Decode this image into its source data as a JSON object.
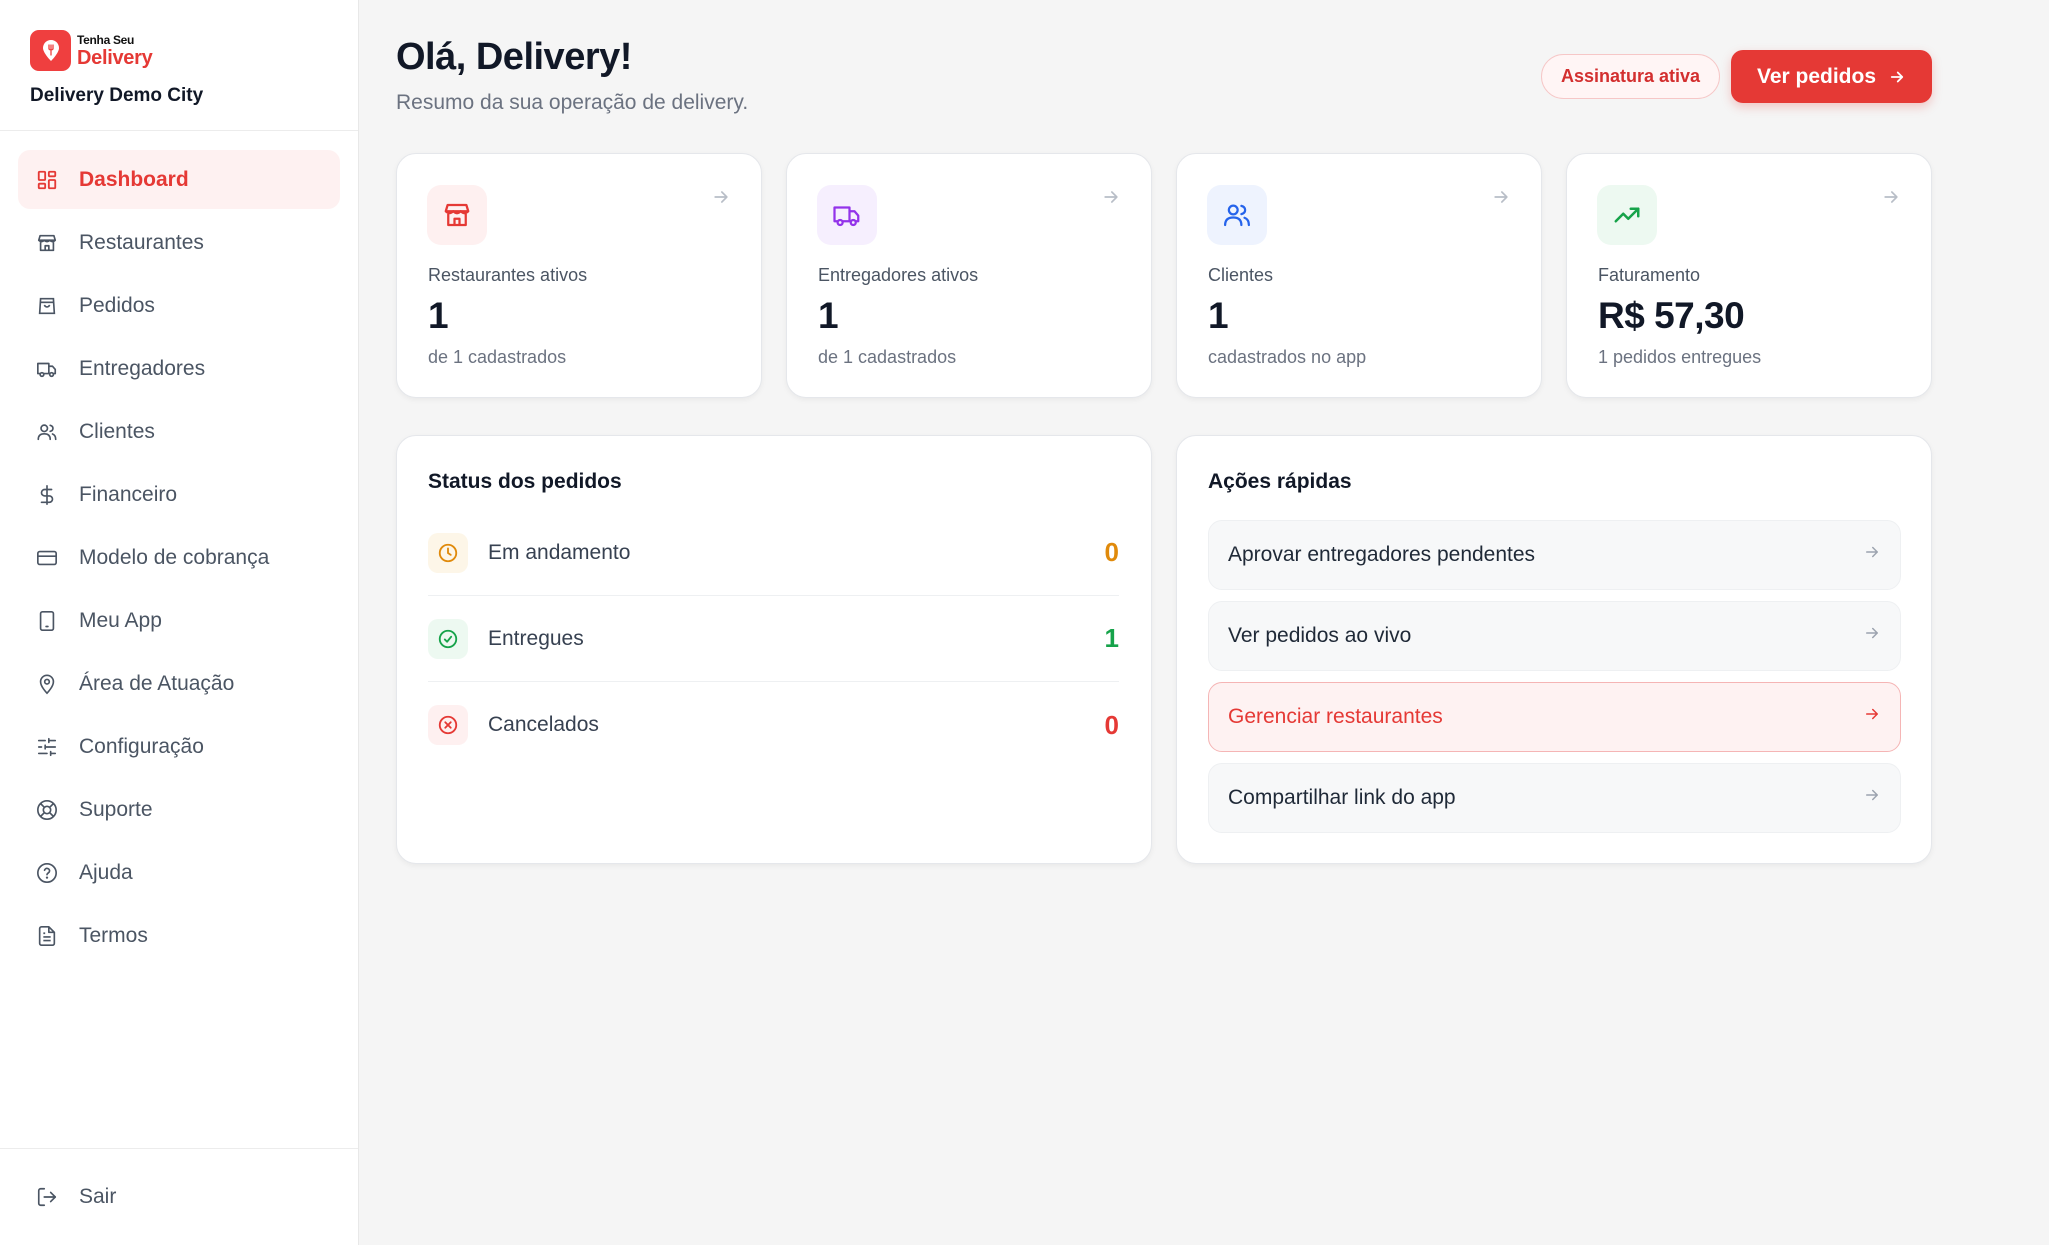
{
  "brand": {
    "line1": "Tenha Seu",
    "line2": "Delivery",
    "city": "Delivery Demo City"
  },
  "nav": {
    "items": [
      {
        "label": "Dashboard",
        "icon": "dashboard-icon",
        "active": true
      },
      {
        "label": "Restaurantes",
        "icon": "store-icon"
      },
      {
        "label": "Pedidos",
        "icon": "bag-icon"
      },
      {
        "label": "Entregadores",
        "icon": "truck-icon"
      },
      {
        "label": "Clientes",
        "icon": "users-icon"
      },
      {
        "label": "Financeiro",
        "icon": "dollar-icon"
      },
      {
        "label": "Modelo de cobrança",
        "icon": "card-icon"
      },
      {
        "label": "Meu App",
        "icon": "phone-icon"
      },
      {
        "label": "Área de Atuação",
        "icon": "map-pin-icon"
      },
      {
        "label": "Configuração",
        "icon": "sliders-icon"
      },
      {
        "label": "Suporte",
        "icon": "lifebuoy-icon"
      },
      {
        "label": "Ajuda",
        "icon": "help-icon"
      },
      {
        "label": "Termos",
        "icon": "document-icon"
      }
    ],
    "logout": "Sair"
  },
  "header": {
    "greeting": "Olá, Delivery!",
    "subtitle": "Resumo da sua operação de delivery.",
    "badge": "Assinatura ativa",
    "button": "Ver pedidos"
  },
  "stats": [
    {
      "label": "Restaurantes ativos",
      "value": "1",
      "note": "de 1 cadastrados",
      "icon": "store-icon",
      "color": "#e53935",
      "bg": "#fef0f0"
    },
    {
      "label": "Entregadores ativos",
      "value": "1",
      "note": "de 1 cadastrados",
      "icon": "truck-icon",
      "color": "#9333ea",
      "bg": "#f6effe"
    },
    {
      "label": "Clientes",
      "value": "1",
      "note": "cadastrados no app",
      "icon": "users-icon",
      "color": "#2563eb",
      "bg": "#eef3fe"
    },
    {
      "label": "Faturamento",
      "value": "R$ 57,30",
      "note": "1 pedidos entregues",
      "icon": "trending-up-icon",
      "color": "#16a34a",
      "bg": "#edf9f1"
    }
  ],
  "status": {
    "title": "Status dos pedidos",
    "rows": [
      {
        "label": "Em andamento",
        "count": "0",
        "color": "#e08a0b",
        "bg": "#fdf6e8",
        "icon": "clock-icon"
      },
      {
        "label": "Entregues",
        "count": "1",
        "color": "#16a34a",
        "bg": "#edf9f1",
        "icon": "check-circle-icon"
      },
      {
        "label": "Cancelados",
        "count": "0",
        "color": "#e53935",
        "bg": "#fef0f0",
        "icon": "x-circle-icon"
      }
    ]
  },
  "actions": {
    "title": "Ações rápidas",
    "items": [
      {
        "label": "Aprovar entregadores pendentes"
      },
      {
        "label": "Ver pedidos ao vivo"
      },
      {
        "label": "Gerenciar restaurantes",
        "highlight": true
      },
      {
        "label": "Compartilhar link do app"
      }
    ]
  }
}
